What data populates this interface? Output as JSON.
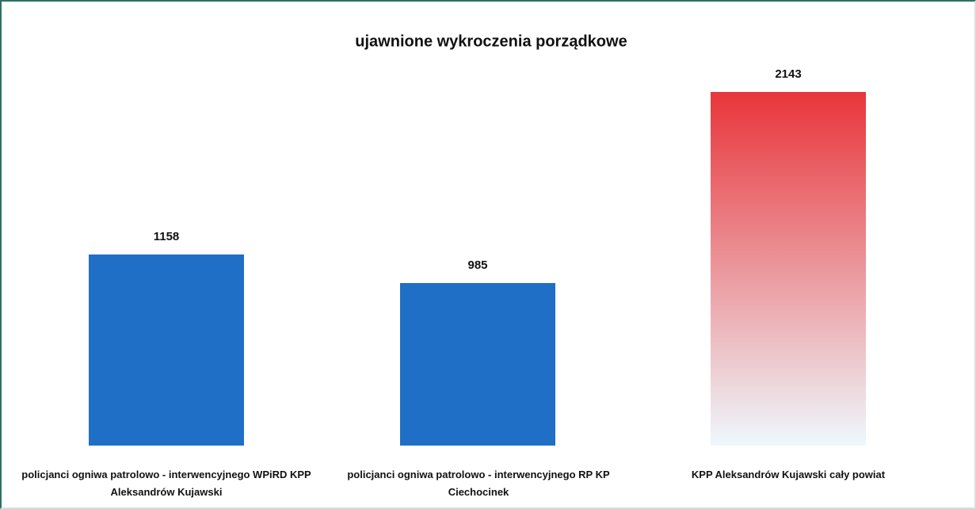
{
  "chart_data": {
    "type": "bar",
    "title": "ujawnione wykroczenia porządkowe",
    "categories": [
      "policjanci ogniwa patrolowo - interwencyjnego WPiRD KPP Aleksandrów Kujawski",
      "policjanci ogniwa patrolowo - interwencyjnego RP KP Ciechocinek",
      "KPP Aleksandrów Kujawski cały powiat"
    ],
    "values": [
      1158,
      985,
      2143
    ],
    "colors": [
      "#1f6fc6",
      "#1f6fc6",
      [
        "#e8353a",
        "#eef8fd"
      ]
    ]
  }
}
